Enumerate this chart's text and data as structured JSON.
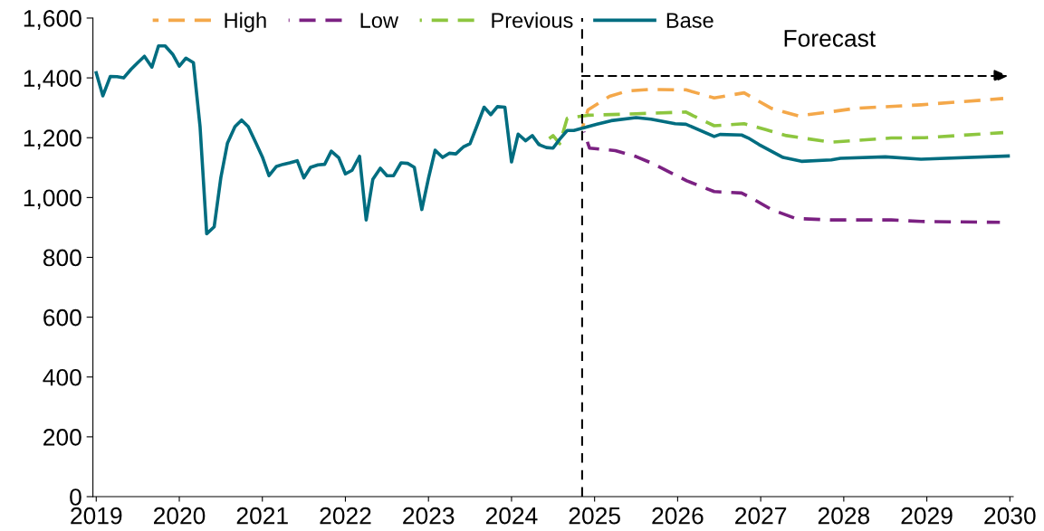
{
  "chart_data": {
    "type": "line",
    "legend": "top",
    "grid": false,
    "marker": "none",
    "xlim": [
      2018.96,
      2030.04
    ],
    "xticks": [
      2019,
      2020,
      2021,
      2022,
      2023,
      2024,
      2025,
      2026,
      2027,
      2028,
      2029,
      2030
    ],
    "ylim": [
      0,
      1600
    ],
    "yticks": [
      0,
      200,
      400,
      600,
      800,
      {
        "value": 1000,
        "label": "1,000"
      },
      {
        "value": 1200,
        "label": "1,200"
      },
      {
        "value": 1400,
        "label": "1,400"
      },
      {
        "value": 1600,
        "label": "1,600"
      }
    ],
    "ref_lines": [
      {
        "axis": "x",
        "value": 2024.85,
        "label": null,
        "color": "#000000",
        "line_style": "dashed"
      }
    ],
    "annotations": [
      "Forecast"
    ],
    "series": [
      {
        "name": "High",
        "color": "#f4a84a",
        "line_style": "dashed",
        "x": [
          2024.85,
          2024.92,
          2025.18,
          2025.39,
          2025.65,
          2026.1,
          2026.44,
          2026.8,
          2026.95,
          2027.13,
          2027.45,
          2027.85,
          2028.14,
          2028.93,
          2029.92
        ],
        "values": [
          1230,
          1293,
          1338,
          1356,
          1361,
          1360,
          1333,
          1350,
          1326,
          1298,
          1273,
          1287,
          1298,
          1310,
          1331
        ]
      },
      {
        "name": "Low",
        "color": "#7b2182",
        "line_style": "dashed",
        "x": [
          2024.87,
          2024.94,
          2025.25,
          2025.5,
          2025.68,
          2026.11,
          2026.44,
          2026.77,
          2026.91,
          2027.13,
          2027.42,
          2027.85,
          2028.57,
          2028.93,
          2029.88
        ],
        "values": [
          1220,
          1165,
          1157,
          1137,
          1116,
          1056,
          1020,
          1015,
          995,
          960,
          930,
          925,
          925,
          920,
          917
        ]
      },
      {
        "name": "Previous",
        "color": "#8dc63f",
        "line_style": "dashed",
        "x": [
          2024.33,
          2024.42,
          2024.5,
          2024.58,
          2024.67,
          2024.92,
          2025.5,
          2026.1,
          2026.19,
          2026.44,
          2026.8,
          2027.06,
          2027.31,
          2027.85,
          2028.57,
          2028.97,
          2029.92
        ],
        "values": [
          1177,
          1190,
          1207,
          1180,
          1265,
          1275,
          1280,
          1286,
          1273,
          1240,
          1247,
          1227,
          1207,
          1185,
          1199,
          1200,
          1217
        ]
      },
      {
        "name": "Base",
        "color": "#006d80",
        "line_style": "solid",
        "x": [
          2019.0,
          2019.08,
          2019.17,
          2019.25,
          2019.33,
          2019.42,
          2019.5,
          2019.58,
          2019.67,
          2019.75,
          2019.83,
          2019.92,
          2020.0,
          2020.08,
          2020.17,
          2020.25,
          2020.33,
          2020.42,
          2020.5,
          2020.58,
          2020.67,
          2020.75,
          2020.83,
          2020.92,
          2021.0,
          2021.08,
          2021.17,
          2021.25,
          2021.33,
          2021.42,
          2021.5,
          2021.58,
          2021.67,
          2021.75,
          2021.83,
          2021.92,
          2022.0,
          2022.08,
          2022.17,
          2022.25,
          2022.33,
          2022.42,
          2022.5,
          2022.58,
          2022.67,
          2022.75,
          2022.83,
          2022.92,
          2023.0,
          2023.08,
          2023.17,
          2023.25,
          2023.33,
          2023.42,
          2023.5,
          2023.58,
          2023.67,
          2023.75,
          2023.83,
          2023.92,
          2024.0,
          2024.08,
          2024.17,
          2024.25,
          2024.33,
          2024.42,
          2024.5,
          2024.58,
          2024.67,
          2024.75,
          2024.88,
          2025.03,
          2025.2,
          2025.5,
          2025.68,
          2025.97,
          2026.1,
          2026.44,
          2026.51,
          2026.77,
          2026.85,
          2026.98,
          2027.27,
          2027.49,
          2027.85,
          2027.96,
          2028.5,
          2028.93,
          2029.98
        ],
        "values": [
          1417,
          1340,
          1405,
          1404,
          1400,
          1429,
          1451,
          1472,
          1436,
          1507,
          1507,
          1479,
          1439,
          1466,
          1451,
          1237,
          879,
          902,
          1066,
          1182,
          1237,
          1259,
          1237,
          1184,
          1136,
          1073,
          1104,
          1111,
          1116,
          1123,
          1066,
          1101,
          1109,
          1111,
          1155,
          1133,
          1079,
          1091,
          1138,
          925,
          1061,
          1098,
          1073,
          1073,
          1116,
          1114,
          1101,
          960,
          1064,
          1158,
          1134,
          1148,
          1146,
          1169,
          1180,
          1237,
          1302,
          1277,
          1304,
          1302,
          1119,
          1212,
          1190,
          1207,
          1177,
          1167,
          1165,
          1195,
          1224,
          1224,
          1234,
          1245,
          1257,
          1267,
          1262,
          1247,
          1245,
          1204,
          1211,
          1209,
          1199,
          1177,
          1134,
          1121,
          1126,
          1131,
          1136,
          1128,
          1139
        ]
      }
    ]
  }
}
